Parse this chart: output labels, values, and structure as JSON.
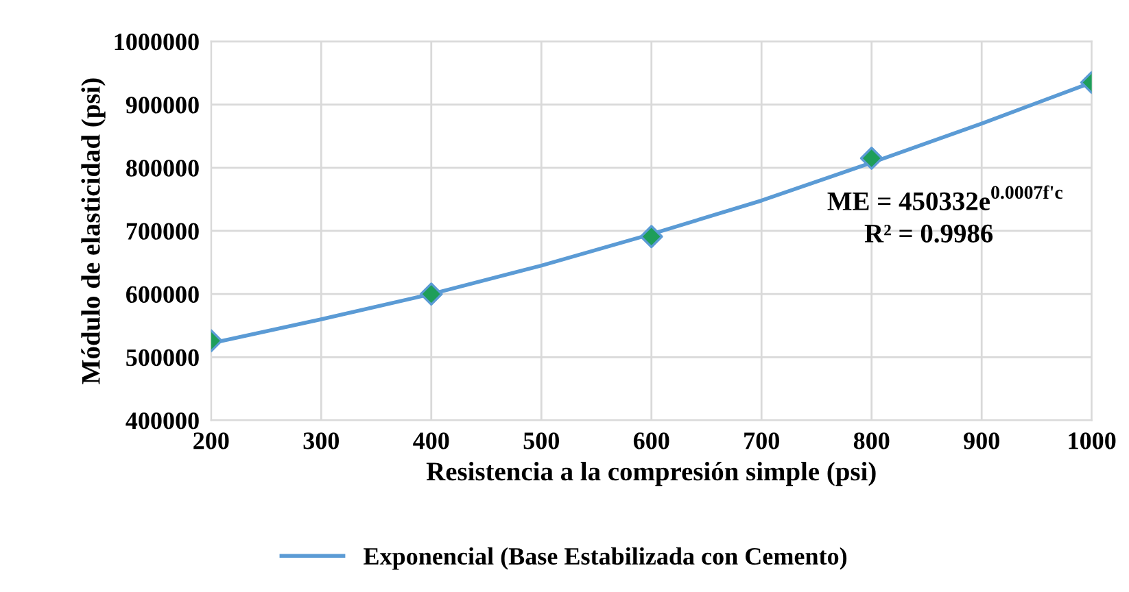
{
  "chart_data": {
    "type": "scatter",
    "xlabel": "Resistencia a la compresión simple (psi)",
    "ylabel": "Módulo de elasticidad (psi)",
    "xlim": [
      200,
      1000
    ],
    "xticks": [
      200,
      300,
      400,
      500,
      600,
      700,
      800,
      900,
      1000
    ],
    "ylim": [
      400000,
      1000000
    ],
    "yticks": [
      400000,
      500000,
      600000,
      700000,
      800000,
      900000,
      1000000
    ],
    "grid": true,
    "legend": "bottom",
    "marker": "diamond",
    "annotations": [
      "ME = 450332e",
      "0.0007f'c",
      "R² = 0.9986"
    ],
    "series": [
      {
        "color": "#1e9e5a",
        "x": [
          200,
          400,
          600,
          800,
          1000
        ],
        "values": [
          526000,
          600000,
          691000,
          815000,
          935000
        ]
      },
      {
        "type": "line",
        "name": "Exponencial (Base Estabilizada con Cemento)",
        "color": "#5b9bd5",
        "marker": "none",
        "line_style": "solid",
        "x": [
          200,
          300,
          400,
          500,
          600,
          700,
          800,
          900,
          1000
        ],
        "values": [
          522000,
          560000,
          600000,
          645000,
          695000,
          748000,
          808000,
          870000,
          935000
        ]
      }
    ]
  }
}
